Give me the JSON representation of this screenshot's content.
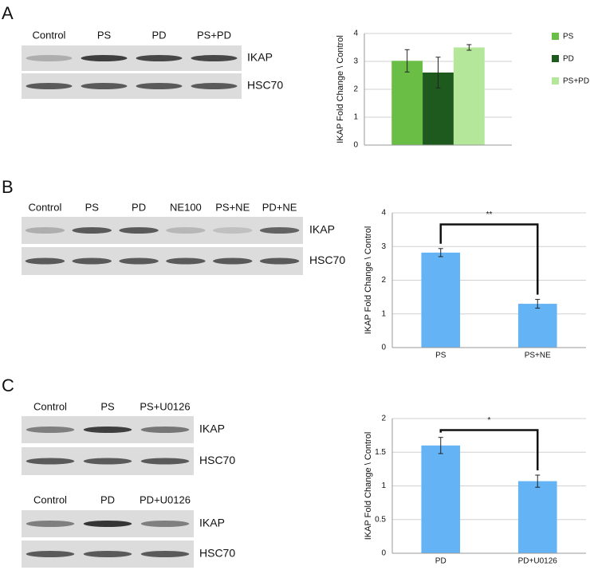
{
  "panels": [
    {
      "letter": "A",
      "blots": [
        {
          "lanes": [
            "Control",
            "PS",
            "PD",
            "PS+PD"
          ],
          "rows": [
            "IKAP",
            "HSC70"
          ]
        }
      ]
    },
    {
      "letter": "B",
      "blots": [
        {
          "lanes": [
            "Control",
            "PS",
            "PD",
            "NE100",
            "PS+NE",
            "PD+NE"
          ],
          "rows": [
            "IKAP",
            "HSC70"
          ]
        }
      ]
    },
    {
      "letter": "C",
      "blots": [
        {
          "lanes": [
            "Control",
            "PS",
            "PS+U0126"
          ],
          "rows": [
            "IKAP",
            "HSC70"
          ]
        },
        {
          "lanes": [
            "Control",
            "PD",
            "PD+U0126"
          ],
          "rows": [
            "IKAP",
            "HSC70"
          ]
        }
      ]
    }
  ],
  "chart_data": [
    {
      "type": "grouped-bar",
      "y_label": "IKAP Fold Change \\ Control",
      "categories": [
        null
      ],
      "series": [
        {
          "name": "PS",
          "color": "#6abd45",
          "values": [
            3.02
          ],
          "errors": [
            0.4
          ]
        },
        {
          "name": "PD",
          "color": "#1e5a1e",
          "values": [
            2.6
          ],
          "errors": [
            0.55
          ]
        },
        {
          "name": "PS+PD",
          "color": "#b4e79a",
          "values": [
            3.5
          ],
          "errors": [
            0.1
          ]
        }
      ],
      "ylim": [
        0,
        4
      ],
      "yticks": [
        0,
        1,
        2,
        3,
        4
      ],
      "grid": true,
      "legend": "right"
    },
    {
      "type": "bar",
      "y_label": "IKAP Fold Change \\ Control",
      "categories": [
        "PS",
        "PS+NE"
      ],
      "values": [
        2.82,
        1.3
      ],
      "errors": [
        0.12,
        0.13
      ],
      "color": "#63b3f5",
      "ylim": [
        0,
        4
      ],
      "yticks": [
        0,
        1,
        2,
        3,
        4
      ],
      "grid": true,
      "annotation": "**"
    },
    {
      "type": "bar",
      "y_label": "IKAP Fold Change \\ Control",
      "categories": [
        "PD",
        "PD+U0126"
      ],
      "values": [
        1.6,
        1.07
      ],
      "errors": [
        0.12,
        0.09
      ],
      "color": "#63b3f5",
      "ylim": [
        0,
        2
      ],
      "yticks": [
        0,
        0.5,
        1,
        1.5,
        2
      ],
      "grid": true,
      "annotation": "*"
    }
  ]
}
